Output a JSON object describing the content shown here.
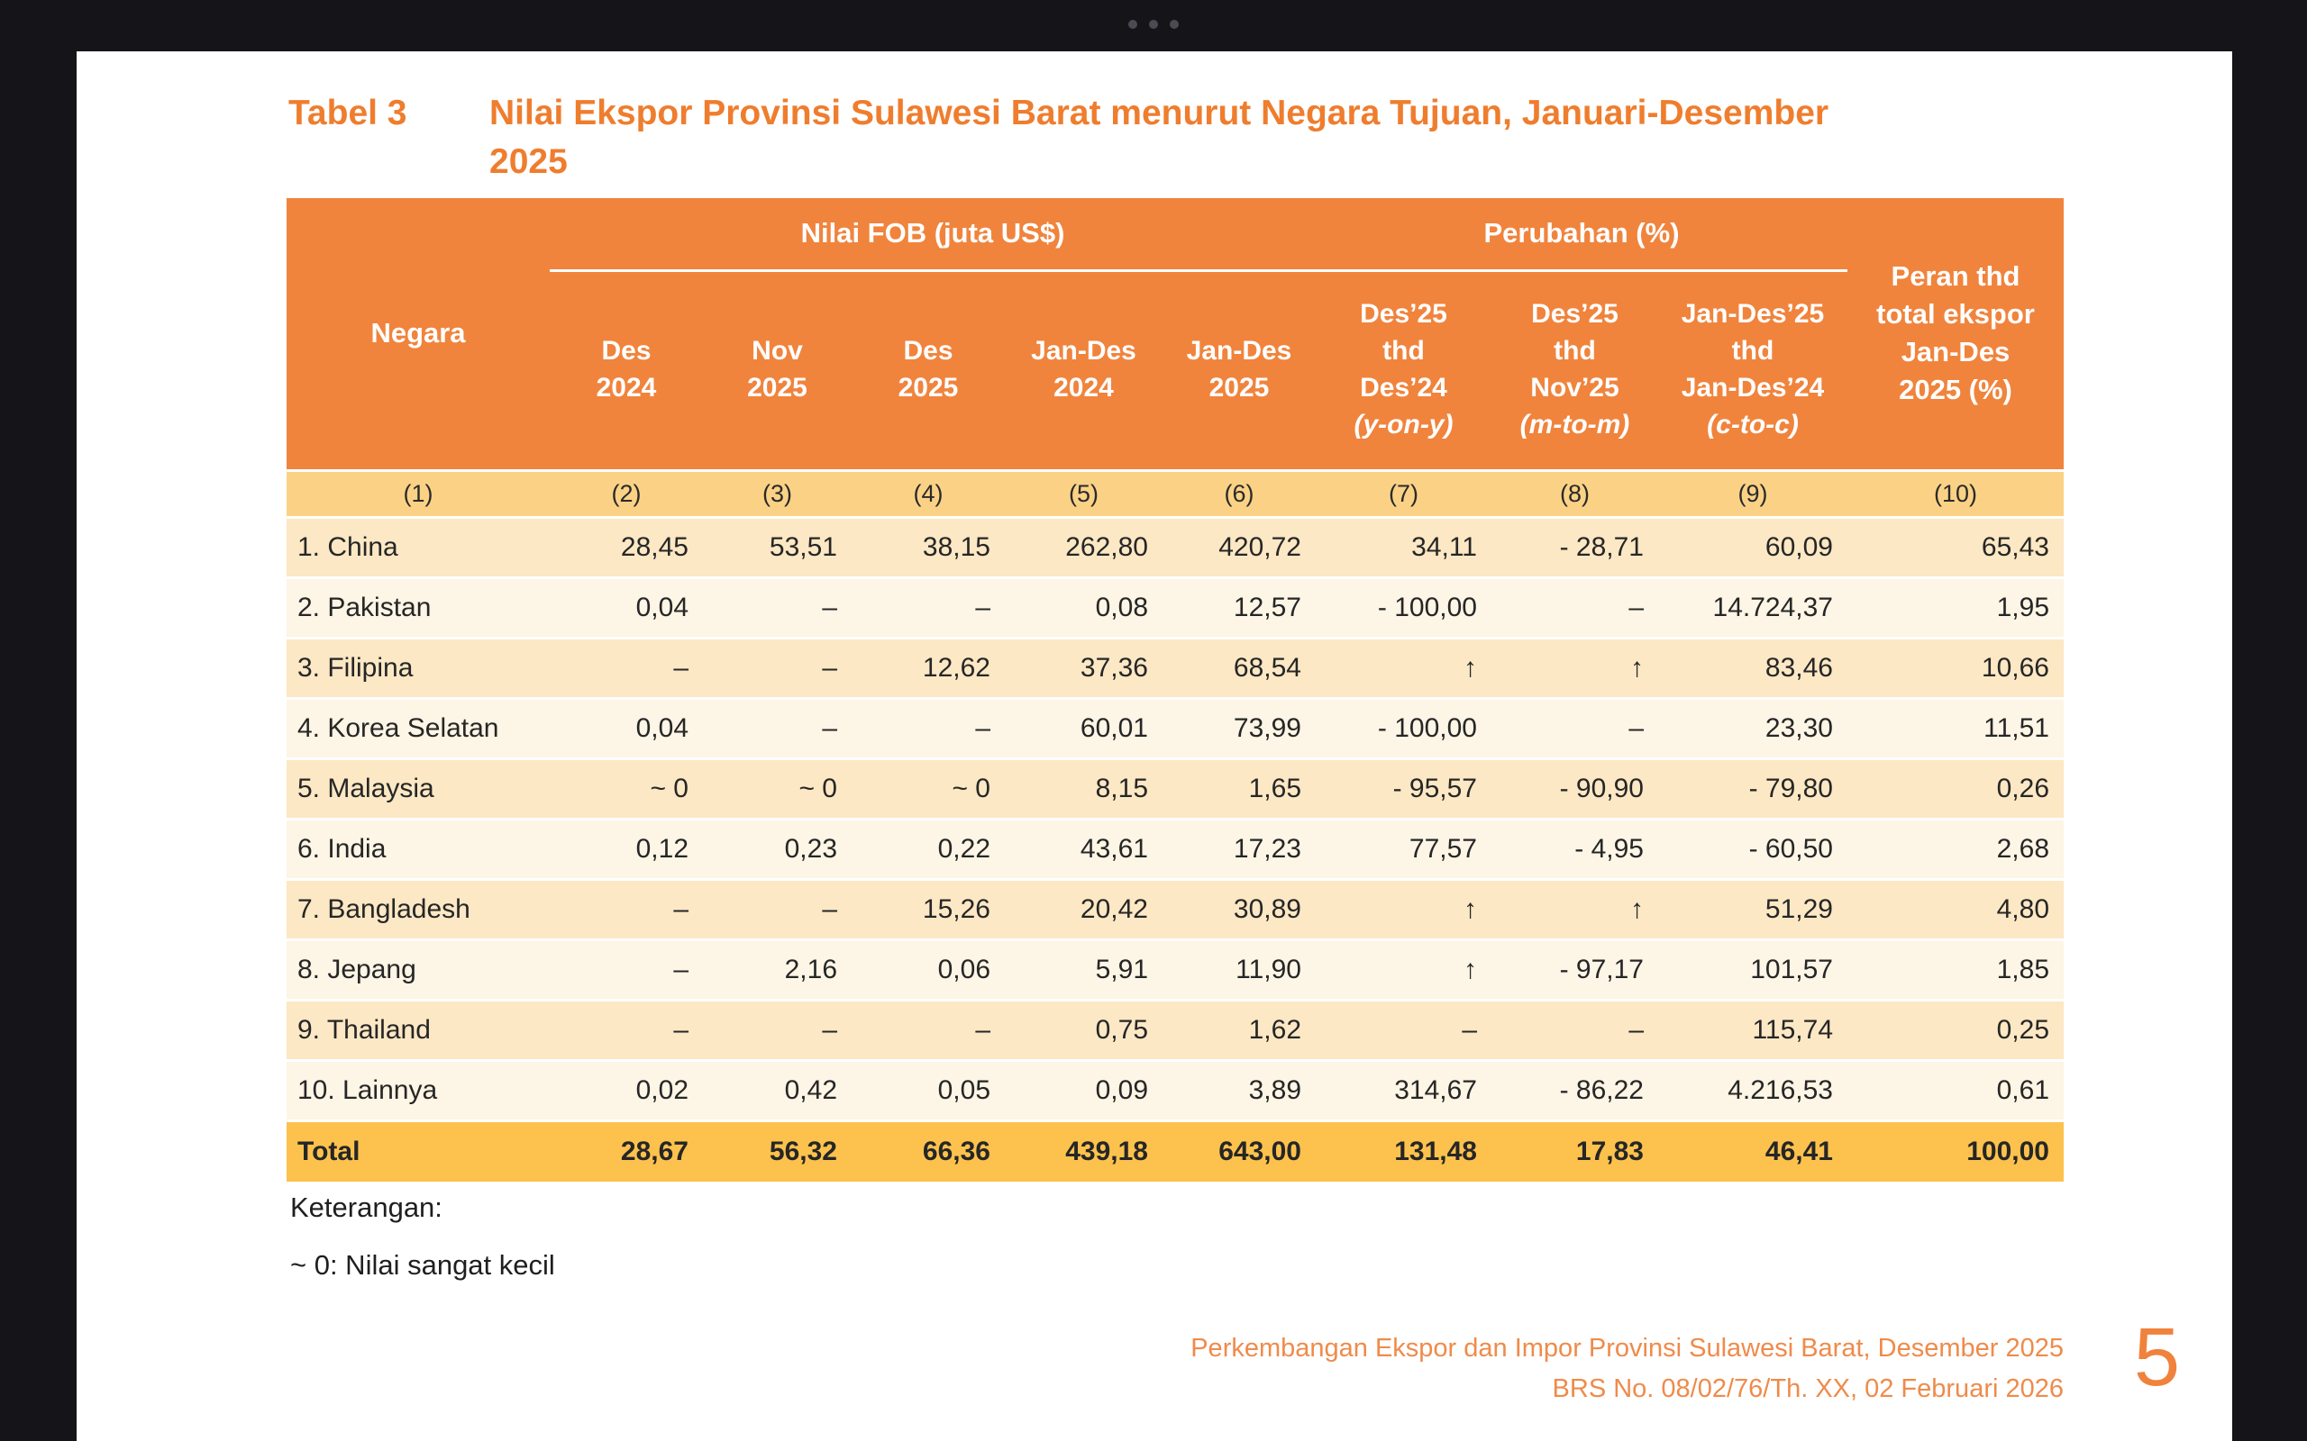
{
  "window": {
    "drag_handle": "three-dot drag handle"
  },
  "colors": {
    "frame_bg": "#141419",
    "page_bg": "#ffffff",
    "accent_orange": "#f0843d",
    "title_orange": "#ef7d2e",
    "colnum_row_bg": "#fbd285",
    "row_odd_bg": "#fce8c4",
    "row_even_bg": "#fdf5e5",
    "total_row_bg": "#fcc24d",
    "footer_orange": "#ef8b4b",
    "body_text": "#262626"
  },
  "title": {
    "label": "Tabel 3",
    "text": "Nilai Ekspor Provinsi Sulawesi Barat menurut Negara Tujuan, Januari-Desember\n2025"
  },
  "table": {
    "group_headers": {
      "negara": "Negara",
      "fob": "Nilai FOB (juta US$)",
      "perubahan": "Perubahan (%)",
      "peran": "Peran thd\ntotal ekspor\nJan-Des\n2025 (%)"
    },
    "sub_headers_fob": [
      "Des\n2024",
      "Nov\n2025",
      "Des\n2025",
      "Jan-Des\n2024",
      "Jan-Des\n2025"
    ],
    "sub_headers_perubahan": [
      {
        "text": "Des’25\nthd\nDes’24",
        "note": "(y-on-y)"
      },
      {
        "text": "Des’25\nthd\nNov’25",
        "note": "(m-to-m)"
      },
      {
        "text": "Jan-Des’25\nthd\nJan-Des’24",
        "note": "(c-to-c)"
      }
    ],
    "col_numbers": [
      "(1)",
      "(2)",
      "(3)",
      "(4)",
      "(5)",
      "(6)",
      "(7)",
      "(8)",
      "(9)",
      "(10)"
    ],
    "rows": [
      {
        "name": "1. China",
        "values": [
          "28,45",
          "53,51",
          "38,15",
          "262,80",
          "420,72",
          "34,11",
          "- 28,71",
          "60,09",
          "65,43"
        ]
      },
      {
        "name": "2. Pakistan",
        "values": [
          "0,04",
          "–",
          "–",
          "0,08",
          "12,57",
          "- 100,00",
          "–",
          "14.724,37",
          "1,95"
        ]
      },
      {
        "name": "3. Filipina",
        "values": [
          "–",
          "–",
          "12,62",
          "37,36",
          "68,54",
          "↑",
          "↑",
          "83,46",
          "10,66"
        ]
      },
      {
        "name": "4. Korea Selatan",
        "values": [
          "0,04",
          "–",
          "–",
          "60,01",
          "73,99",
          "- 100,00",
          "–",
          "23,30",
          "11,51"
        ]
      },
      {
        "name": "5. Malaysia",
        "values": [
          "~ 0",
          "~ 0",
          "~ 0",
          "8,15",
          "1,65",
          "- 95,57",
          "- 90,90",
          "- 79,80",
          "0,26"
        ]
      },
      {
        "name": "6. India",
        "values": [
          "0,12",
          "0,23",
          "0,22",
          "43,61",
          "17,23",
          "77,57",
          "- 4,95",
          "- 60,50",
          "2,68"
        ]
      },
      {
        "name": "7. Bangladesh",
        "values": [
          "–",
          "–",
          "15,26",
          "20,42",
          "30,89",
          "↑",
          "↑",
          "51,29",
          "4,80"
        ]
      },
      {
        "name": "8. Jepang",
        "values": [
          "–",
          "2,16",
          "0,06",
          "5,91",
          "11,90",
          "↑",
          "- 97,17",
          "101,57",
          "1,85"
        ]
      },
      {
        "name": "9. Thailand",
        "values": [
          "–",
          "–",
          "–",
          "0,75",
          "1,62",
          "–",
          "–",
          "115,74",
          "0,25"
        ]
      },
      {
        "name": "10. Lainnya",
        "values": [
          "0,02",
          "0,42",
          "0,05",
          "0,09",
          "3,89",
          "314,67",
          "- 86,22",
          "4.216,53",
          "0,61"
        ]
      }
    ],
    "total_row": {
      "name": "Total",
      "values": [
        "28,67",
        "56,32",
        "66,36",
        "439,18",
        "643,00",
        "131,48",
        "17,83",
        "46,41",
        "100,00"
      ]
    }
  },
  "notes": {
    "heading": "Keterangan:",
    "line": "~ 0: Nilai sangat kecil"
  },
  "footer": {
    "line1": "Perkembangan Ekspor dan Impor Provinsi Sulawesi Barat, Desember 2025",
    "line2": "BRS No. 08/02/76/Th. XX,  02 Februari 2026",
    "page_number": "5"
  }
}
